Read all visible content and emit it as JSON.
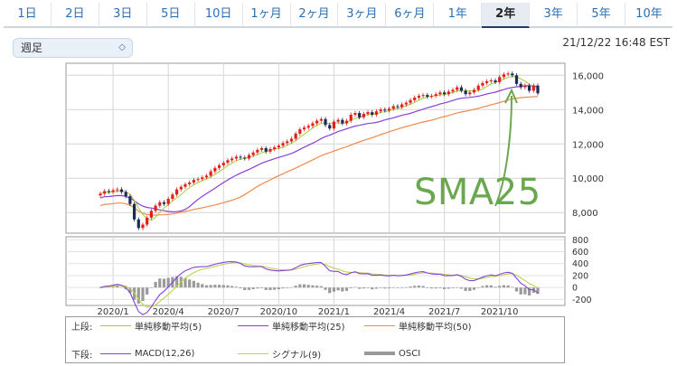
{
  "tabs": [
    "1日",
    "2日",
    "3日",
    "5日",
    "10日",
    "1ヶ月",
    "2ヶ月",
    "3ヶ月",
    "6ヶ月",
    "1年",
    "2年",
    "3年",
    "5年",
    "10年"
  ],
  "active_tab": "2年",
  "period_select": {
    "value": "週足"
  },
  "timestamp": "21/12/22 16:48 EST",
  "annotation": "SMA25",
  "colors": {
    "up": "#e0201b",
    "down": "#1b2a57",
    "sma5": "#aacb3b",
    "sma25": "#8a3fd6",
    "sma50": "#f08a4b",
    "macd": "#8a3fd6",
    "signal": "#b8d64a",
    "osci": "#9a9a9a",
    "annot": "#6aa84f"
  },
  "chart_data": [
    {
      "type": "candlestick",
      "x_ticks": [
        "2020/1",
        "2020/4",
        "2020/7",
        "2020/10",
        "2021/1",
        "2021/4",
        "2021/7",
        "2021/10"
      ],
      "y_ticks": [
        8000,
        10000,
        12000,
        14000,
        16000
      ],
      "ylim": [
        6800,
        16700
      ],
      "weeks": 104,
      "close": [
        9100,
        9250,
        9200,
        9300,
        9350,
        9200,
        8950,
        8500,
        7600,
        7100,
        7300,
        7700,
        8100,
        8400,
        8600,
        8500,
        8800,
        9050,
        9350,
        9500,
        9650,
        9750,
        9900,
        9950,
        10050,
        10150,
        10400,
        10600,
        10750,
        10900,
        11050,
        11150,
        11250,
        11200,
        11150,
        11350,
        11500,
        11650,
        11750,
        11550,
        11700,
        11800,
        11900,
        12050,
        12150,
        12300,
        12600,
        12850,
        12950,
        13050,
        13200,
        13350,
        13450,
        13100,
        12900,
        13300,
        13400,
        13200,
        13350,
        13700,
        13800,
        13550,
        13750,
        13850,
        13700,
        13900,
        14000,
        13950,
        14050,
        14200,
        14150,
        14300,
        14400,
        14550,
        14700,
        14800,
        14850,
        14750,
        14800,
        14900,
        15000,
        14900,
        15050,
        15150,
        15300,
        15100,
        14900,
        15000,
        15150,
        15400,
        15550,
        15650,
        15700,
        15600,
        15900,
        16050,
        16100,
        16000,
        15500,
        15300,
        15400,
        15100,
        15400,
        14950
      ],
      "series": [
        {
          "name": "単純移動平均(5)",
          "role": "sma5"
        },
        {
          "name": "単純移動平均(25)",
          "role": "sma25"
        },
        {
          "name": "単純移動平均(50)",
          "role": "sma50"
        }
      ]
    },
    {
      "type": "line",
      "y_ticks": [
        800,
        600,
        400,
        200,
        0,
        -200
      ],
      "ylim": [
        -300,
        850
      ],
      "series": [
        {
          "name": "MACD(12,26)",
          "role": "macd"
        },
        {
          "name": "シグナル(9)",
          "role": "signal"
        },
        {
          "name": "OSCI",
          "role": "osci"
        }
      ]
    }
  ],
  "legend": {
    "upper_label": "上段:",
    "lower_label": "下段:",
    "upper": [
      {
        "name": "単純移動平均(5)",
        "role": "sma5"
      },
      {
        "name": "単純移動平均(25)",
        "role": "sma25"
      },
      {
        "name": "単純移動平均(50)",
        "role": "sma50"
      }
    ],
    "lower": [
      {
        "name": "MACD(12,26)",
        "role": "macd"
      },
      {
        "name": "シグナル(9)",
        "role": "signal"
      },
      {
        "name": "OSCI",
        "role": "osci"
      }
    ]
  }
}
